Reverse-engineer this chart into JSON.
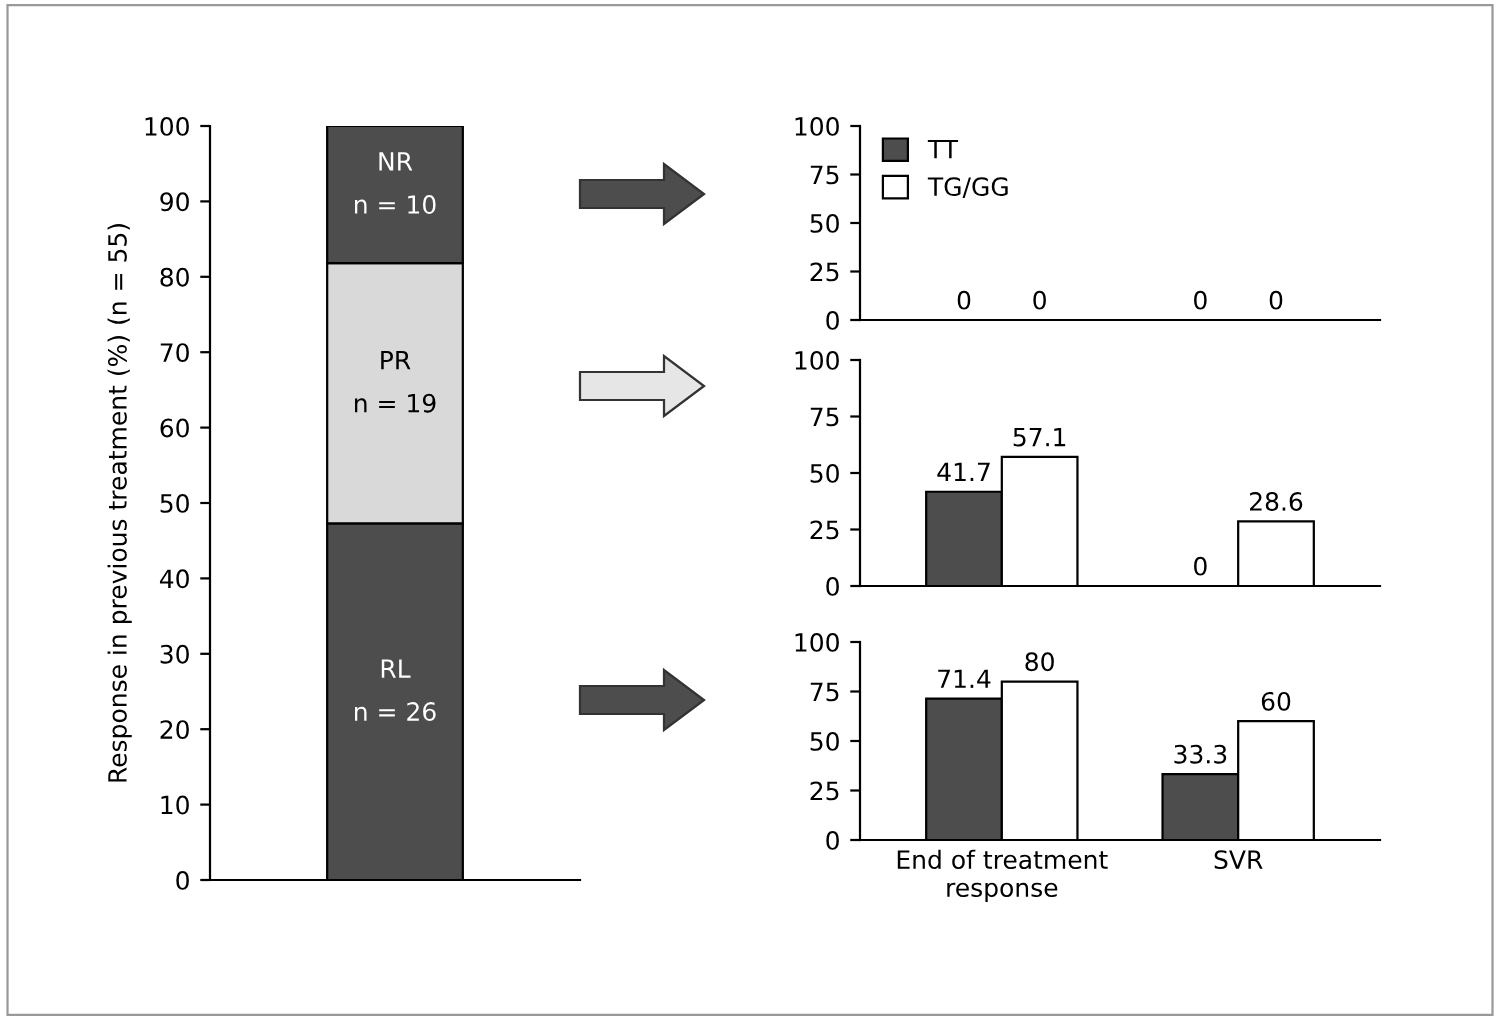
{
  "chart_data": [
    {
      "type": "bar",
      "stacked": true,
      "categories": [
        null
      ],
      "ylabel": "Response in previous treatment (%) (n = 55)",
      "ylim": [
        0,
        100
      ],
      "yticks": [
        0,
        10,
        20,
        30,
        40,
        50,
        60,
        70,
        80,
        90,
        100
      ],
      "grid": false,
      "legend": false,
      "series": [
        {
          "name": "RL",
          "color": "#4d4d4d",
          "values": [
            47.3
          ]
        },
        {
          "name": "PR",
          "color": "#d9d9d9",
          "values": [
            34.5
          ]
        },
        {
          "name": "NR",
          "color": "#4d4d4d",
          "values": [
            18.2
          ]
        }
      ],
      "annotations": [
        "n = 26",
        "n = 19",
        "n = 10"
      ]
    },
    {
      "type": "bar",
      "categories": [
        null,
        null
      ],
      "ylim": [
        0,
        100
      ],
      "yticks": [
        0,
        25,
        50,
        75,
        100
      ],
      "grid": false,
      "legend": false,
      "data_labels": true,
      "tick_labels": "y",
      "series": [
        {
          "color": "#4d4d4d",
          "values": [
            0,
            0
          ]
        },
        {
          "color": "#ffffff",
          "values": [
            0,
            0
          ]
        }
      ]
    },
    {
      "type": "bar",
      "categories": [
        null,
        null
      ],
      "ylim": [
        0,
        100
      ],
      "yticks": [
        0,
        25,
        50,
        75,
        100
      ],
      "grid": false,
      "legend": false,
      "data_labels": true,
      "tick_labels": "y",
      "series": [
        {
          "color": "#4d4d4d",
          "values": [
            41.7,
            0
          ]
        },
        {
          "color": "#ffffff",
          "values": [
            57.1,
            28.6
          ]
        }
      ]
    },
    {
      "type": "bar",
      "categories": [
        "End of treatment response",
        "SVR"
      ],
      "ylim": [
        0,
        100
      ],
      "yticks": [
        0,
        25,
        50,
        75,
        100
      ],
      "grid": false,
      "legend": "top left",
      "data_labels": true,
      "series": [
        {
          "name": "TT",
          "color": "#4d4d4d",
          "values": [
            71.4,
            33.3
          ]
        },
        {
          "name": "TG/GG",
          "color": "#ffffff",
          "values": [
            80,
            60
          ]
        }
      ]
    }
  ]
}
